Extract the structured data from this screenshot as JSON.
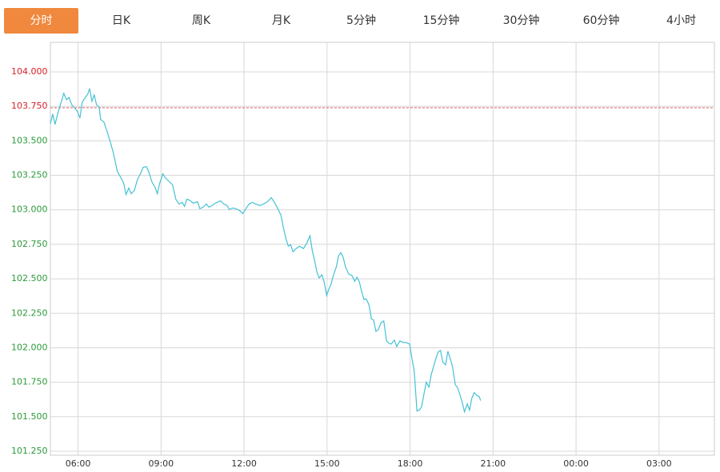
{
  "tabs": {
    "items": [
      "分时",
      "日K",
      "周K",
      "月K",
      "5分钟",
      "15分钟",
      "30分钟",
      "60分钟",
      "4小时"
    ],
    "active": 0
  },
  "chart_data": {
    "type": "line",
    "x": [
      0,
      5,
      10,
      17,
      24,
      29,
      35,
      40,
      47,
      52,
      59,
      64,
      69,
      76,
      81,
      85,
      90,
      95,
      100,
      106,
      109,
      116,
      123,
      130,
      137,
      145,
      152,
      159,
      164,
      170,
      175,
      182,
      189,
      196,
      201,
      208,
      213,
      220,
      227,
      232,
      237,
      244,
      249,
      258,
      265,
      272,
      279,
      286,
      291,
      296,
      301,
      310,
      319,
      324,
      331,
      338,
      344,
      351,
      358,
      369,
      376,
      383,
      388,
      395,
      402,
      410,
      417,
      424,
      431,
      438,
      445,
      454,
      462,
      471,
      479,
      486,
      493,
      500,
      505,
      511,
      516,
      521,
      526,
      533,
      540,
      549,
      556,
      563,
      568,
      573,
      578,
      583,
      589,
      594,
      599,
      604,
      609,
      614,
      620,
      625,
      630,
      635,
      640,
      647,
      654,
      660,
      665,
      670,
      675,
      680,
      685,
      691,
      696,
      701,
      706,
      711,
      717,
      723,
      729,
      734,
      739,
      746,
      751,
      758,
      765,
      772,
      779,
      784,
      789,
      795,
      800,
      805,
      810,
      815,
      821,
      826,
      831,
      836,
      841,
      846,
      851,
      857,
      862,
      867,
      872,
      878,
      883,
      888,
      893,
      898,
      904,
      909,
      914,
      919,
      924,
      930,
      933
    ],
    "series": [
      {
        "color": "#45c1d4",
        "values": [
          103.625,
          103.694,
          103.619,
          103.711,
          103.787,
          103.844,
          103.798,
          103.815,
          103.758,
          103.74,
          103.711,
          103.665,
          103.781,
          103.815,
          103.838,
          103.879,
          103.787,
          103.833,
          103.763,
          103.74,
          103.654,
          103.636,
          103.567,
          103.492,
          103.406,
          103.279,
          103.238,
          103.192,
          103.111,
          103.158,
          103.117,
          103.14,
          103.221,
          103.267,
          103.308,
          103.313,
          103.279,
          103.204,
          103.163,
          103.117,
          103.192,
          103.261,
          103.233,
          103.204,
          103.181,
          103.077,
          103.042,
          103.054,
          103.025,
          103.077,
          103.071,
          103.048,
          103.059,
          103.008,
          103.019,
          103.042,
          103.019,
          103.031,
          103.048,
          103.065,
          103.042,
          103.031,
          103.002,
          103.013,
          103.008,
          102.996,
          102.973,
          103.008,
          103.042,
          103.054,
          103.042,
          103.031,
          103.042,
          103.059,
          103.088,
          103.054,
          103.008,
          102.961,
          102.875,
          102.788,
          102.736,
          102.748,
          102.696,
          102.719,
          102.736,
          102.719,
          102.759,
          102.811,
          102.702,
          102.632,
          102.546,
          102.506,
          102.529,
          102.471,
          102.379,
          102.425,
          102.465,
          102.529,
          102.586,
          102.667,
          102.69,
          102.655,
          102.586,
          102.534,
          102.523,
          102.482,
          102.511,
          102.477,
          102.407,
          102.35,
          102.355,
          102.309,
          102.211,
          102.2,
          102.119,
          102.13,
          102.182,
          102.194,
          102.05,
          102.032,
          102.027,
          102.055,
          102.009,
          102.05,
          102.038,
          102.038,
          102.027,
          101.923,
          101.83,
          101.542,
          101.548,
          101.571,
          101.663,
          101.75,
          101.715,
          101.807,
          101.865,
          101.923,
          101.969,
          101.98,
          101.894,
          101.877,
          101.975,
          101.923,
          101.865,
          101.732,
          101.709,
          101.663,
          101.605,
          101.536,
          101.594,
          101.548,
          101.634,
          101.675,
          101.657,
          101.646,
          101.617
        ]
      }
    ],
    "xlim": [
      0,
      1440
    ],
    "xticks": [
      {
        "value": 60,
        "label": "06:00"
      },
      {
        "value": 240,
        "label": "09:00"
      },
      {
        "value": 420,
        "label": "12:00"
      },
      {
        "value": 600,
        "label": "15:00"
      },
      {
        "value": 780,
        "label": "18:00"
      },
      {
        "value": 960,
        "label": "21:00"
      },
      {
        "value": 1140,
        "label": "00:00"
      },
      {
        "value": 1320,
        "label": "03:00"
      }
    ],
    "ylim": [
      101.221,
      104.214
    ],
    "yticks": [
      {
        "value": 101.25,
        "label": "101.250"
      },
      {
        "value": 101.5,
        "label": "101.500"
      },
      {
        "value": 101.75,
        "label": "101.750"
      },
      {
        "value": 102,
        "label": "102.000"
      },
      {
        "value": 102.25,
        "label": "102.250"
      },
      {
        "value": 102.5,
        "label": "102.500"
      },
      {
        "value": 102.75,
        "label": "102.750"
      },
      {
        "value": 103,
        "label": "103.000"
      },
      {
        "value": 103.25,
        "label": "103.250"
      },
      {
        "value": 103.5,
        "label": "103.500"
      },
      {
        "value": 103.75,
        "label": "103.750"
      },
      {
        "value": 104,
        "label": "104.000"
      }
    ],
    "reference_line": {
      "value": 103.74,
      "color": "#e06060"
    },
    "up_color": "#d8202a",
    "down_color": "#2a9a3a",
    "grid": true
  }
}
